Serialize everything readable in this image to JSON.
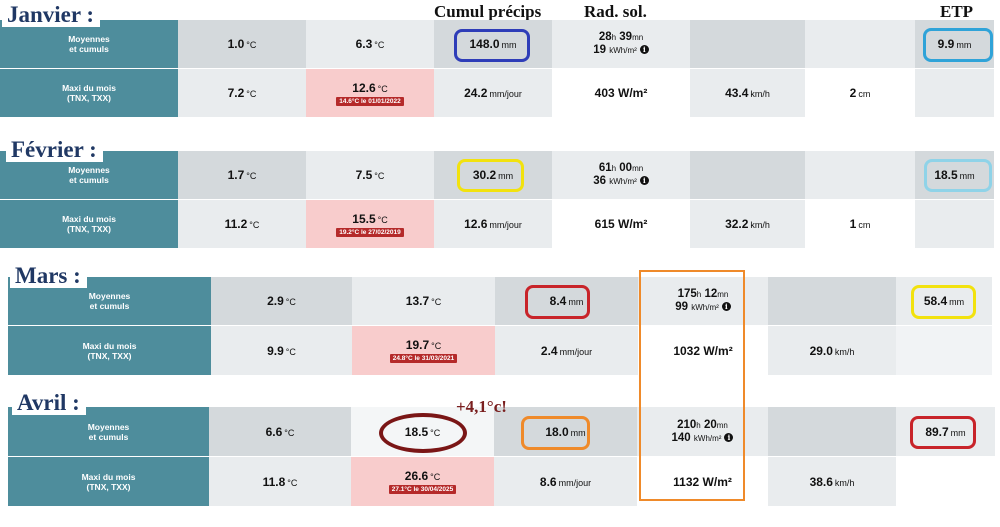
{
  "headers": {
    "cumul": "Cumul précips",
    "rad": "Rad. sol.",
    "etp": "ETP"
  },
  "annotation": "+4,1°c!",
  "units": {
    "c": "°C",
    "mm": "mm",
    "mmj": "mm/jour",
    "wm2": "W/m²",
    "kmh": "km/h",
    "cm": "cm",
    "kwh": "kWh/m²",
    "h": "h",
    "mn": "mn"
  },
  "row_labels": {
    "moy_1": "Moyennes",
    "moy_2": "et cumuls",
    "max_1": "Maxi du mois",
    "max_2": "(TNX, TXX)"
  },
  "info_glyph": "i",
  "months": [
    {
      "name": "Janvier :",
      "moy": {
        "tmin": "1.0",
        "tmax": "6.3",
        "precip": "148.0",
        "sol_h": "28",
        "sol_mn": "39",
        "sol_kwh": "19",
        "etp": "9.9"
      },
      "max": {
        "tnx": "7.2",
        "txx": "12.6",
        "txx_note": "14.6°C le 01/01/2022",
        "precip": "24.2",
        "rad": "403",
        "wind": "43.4",
        "snow": "2"
      }
    },
    {
      "name": "Février :",
      "moy": {
        "tmin": "1.7",
        "tmax": "7.5",
        "precip": "30.2",
        "sol_h": "61",
        "sol_mn": "00",
        "sol_kwh": "36",
        "etp": "18.5"
      },
      "max": {
        "tnx": "11.2",
        "txx": "15.5",
        "txx_note": "19.2°C le 27/02/2019",
        "precip": "12.6",
        "rad": "615",
        "wind": "32.2",
        "snow": "1"
      }
    },
    {
      "name": "Mars :",
      "moy": {
        "tmin": "2.9",
        "tmax": "13.7",
        "precip": "8.4",
        "sol_h": "175",
        "sol_mn": "12",
        "sol_kwh": "99",
        "etp": "58.4"
      },
      "max": {
        "tnx": "9.9",
        "txx": "19.7",
        "txx_note": "24.8°C le 31/03/2021",
        "precip": "2.4",
        "rad": "1032",
        "wind": "29.0"
      }
    },
    {
      "name": "Avril :",
      "moy": {
        "tmin": "6.6",
        "tmax": "18.5",
        "precip": "18.0",
        "sol_h": "210",
        "sol_mn": "20",
        "sol_kwh": "140",
        "etp": "89.7"
      },
      "max": {
        "tnx": "11.8",
        "txx": "26.6",
        "txx_note": "27.1°C le 30/04/2025",
        "precip": "8.6",
        "rad": "1132",
        "wind": "38.6"
      }
    }
  ],
  "colors": {
    "label_bg": "#4e8d9c",
    "month_text": "#203864",
    "ring_blue": "#2e3db8",
    "ring_cyan": "#2fa3d8",
    "ring_lightblue": "#8fd3e8",
    "ring_yellow": "#f2e20e",
    "ring_red": "#c8242a",
    "ring_orange": "#ef8a2a",
    "ring_maroon": "#7a1616"
  }
}
